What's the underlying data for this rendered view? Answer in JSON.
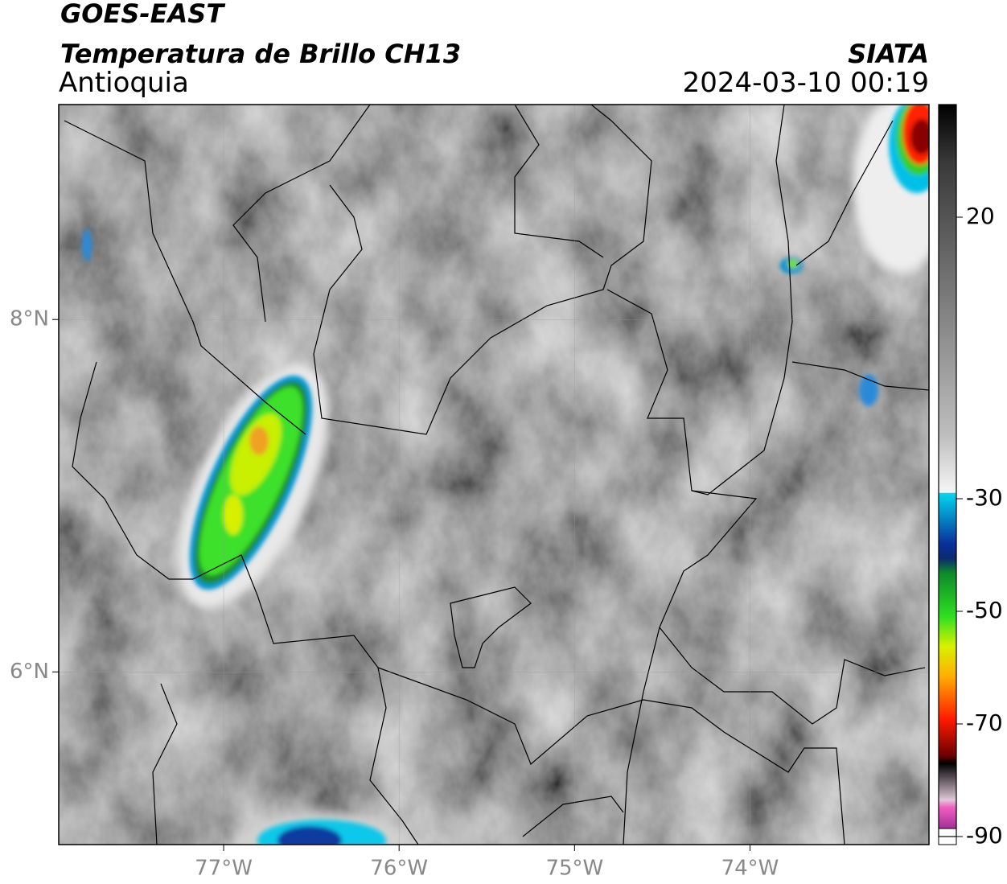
{
  "header": {
    "title": "GOES-EAST",
    "subtitle": "Temperatura de Brillo CH13",
    "region": "Antioquia",
    "source": "SIATA",
    "datetime": "2024-03-10 00:19"
  },
  "map": {
    "xlim": [
      -77.94,
      -72.98
    ],
    "ylim": [
      5.02,
      9.22
    ],
    "xticks": [
      {
        "value": -77,
        "label": "77°W"
      },
      {
        "value": -76,
        "label": "76°W"
      },
      {
        "value": -75,
        "label": "75°W"
      },
      {
        "value": -74,
        "label": "74°W"
      }
    ],
    "yticks": [
      {
        "value": 8,
        "label": "8°N"
      },
      {
        "value": 6,
        "label": "6°N"
      }
    ]
  },
  "colorbar": {
    "range": [
      -90,
      40
    ],
    "ticks": [
      20,
      -30,
      -50,
      -70,
      -90
    ]
  }
}
